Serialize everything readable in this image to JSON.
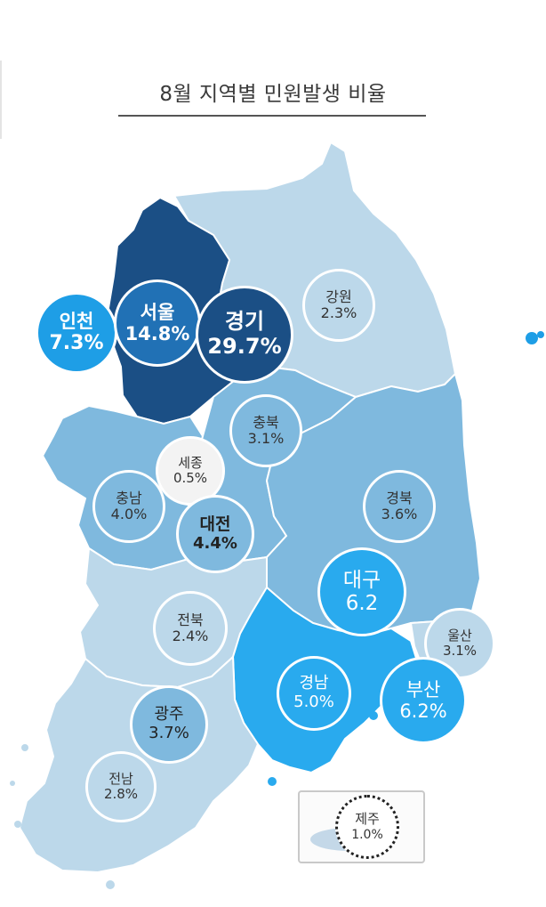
{
  "title": "8월 지역별 민원발생 비율",
  "regions": {
    "incheon": {
      "name": "인천",
      "value": "7.3%"
    },
    "seoul": {
      "name": "서울",
      "value": "14.8%"
    },
    "gyeonggi": {
      "name": "경기",
      "value": "29.7%"
    },
    "gangwon": {
      "name": "강원",
      "value": "2.3%"
    },
    "chungbuk": {
      "name": "충북",
      "value": "3.1%"
    },
    "sejong": {
      "name": "세종",
      "value": "0.5%"
    },
    "chungnam": {
      "name": "충남",
      "value": "4.0%"
    },
    "daejeon": {
      "name": "대전",
      "value": "4.4%"
    },
    "gyeongbuk": {
      "name": "경북",
      "value": "3.6%"
    },
    "daegu": {
      "name": "대구",
      "value": "6.2"
    },
    "ulsan": {
      "name": "울산",
      "value": "3.1%"
    },
    "jeonbuk": {
      "name": "전북",
      "value": "2.4%"
    },
    "gyeongnam": {
      "name": "경남",
      "value": "5.0%"
    },
    "busan": {
      "name": "부산",
      "value": "6.2%"
    },
    "gwangju": {
      "name": "광주",
      "value": "3.7%"
    },
    "jeonnam": {
      "name": "전남",
      "value": "2.8%"
    },
    "jeju": {
      "name": "제주",
      "value": "1.0%"
    }
  },
  "colors": {
    "level_darkest": "#1b4f85",
    "level_dark": "#2171b5",
    "level_bright": "#1e9ee6",
    "level_medium": "#7fb9de",
    "level_light": "#bcd8ea"
  }
}
